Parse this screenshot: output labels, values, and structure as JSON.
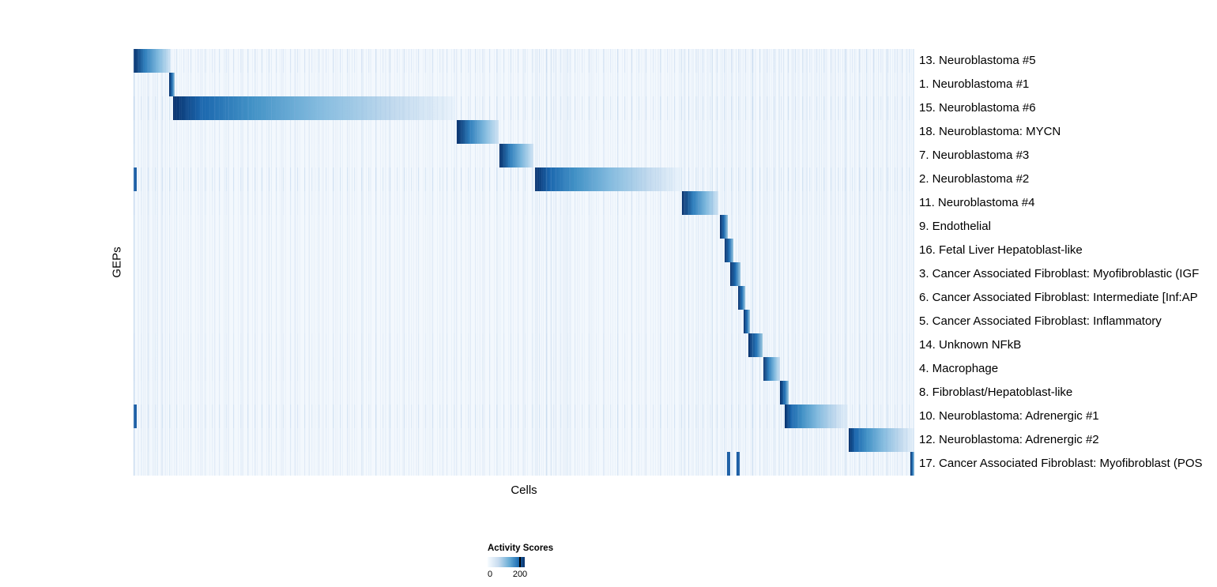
{
  "legend": {
    "title": "Activity Scores",
    "tick_min": "0",
    "tick_max": "200"
  },
  "chart_data": {
    "type": "heatmap",
    "title": "",
    "xlabel": "Cells",
    "ylabel": "GEPs",
    "legend_position": "bottom",
    "grid": false,
    "colorbar": {
      "label": "Activity Scores",
      "ticks": [
        0,
        200
      ],
      "color_low": "#f7fbff",
      "color_high": "#08306b"
    },
    "rows": [
      {
        "label": "13. Neuroblastoma #5",
        "block_start": 0.0,
        "block_end": 0.048,
        "streaks": 0.45
      },
      {
        "label": "1. Neuroblastoma #1",
        "block_start": 0.046,
        "block_end": 0.053,
        "streaks": 0.2
      },
      {
        "label": "15. Neuroblastoma #6",
        "block_start": 0.051,
        "block_end": 0.412,
        "streaks": 0.5
      },
      {
        "label": "18. Neuroblastoma: MYCN",
        "block_start": 0.414,
        "block_end": 0.468,
        "streaks": 0.25
      },
      {
        "label": "7. Neuroblastoma #3",
        "block_start": 0.469,
        "block_end": 0.512,
        "streaks": 0.2
      },
      {
        "label": "2. Neuroblastoma #2",
        "block_start": 0.514,
        "block_end": 0.7,
        "streaks": 0.55,
        "marks": [
          {
            "start": 0.0,
            "end": 0.004
          }
        ]
      },
      {
        "label": "11. Neuroblastoma #4",
        "block_start": 0.702,
        "block_end": 0.749,
        "streaks": 0.3
      },
      {
        "label": "9. Endothelial",
        "block_start": 0.751,
        "block_end": 0.761,
        "streaks": 0.2
      },
      {
        "label": "16. Fetal Liver Hepatoblast-like",
        "block_start": 0.757,
        "block_end": 0.768,
        "streaks": 0.2
      },
      {
        "label": "3. Cancer Associated Fibroblast: Myofibroblastic (IGF",
        "block_start": 0.764,
        "block_end": 0.777,
        "streaks": 0.2
      },
      {
        "label": "6. Cancer Associated Fibroblast: Intermediate [Inf:AP",
        "block_start": 0.774,
        "block_end": 0.783,
        "streaks": 0.2
      },
      {
        "label": "5. Cancer Associated Fibroblast: Inflammatory",
        "block_start": 0.781,
        "block_end": 0.789,
        "streaks": 0.2
      },
      {
        "label": "14. Unknown NFkB",
        "block_start": 0.787,
        "block_end": 0.806,
        "streaks": 0.3
      },
      {
        "label": "4. Macrophage",
        "block_start": 0.807,
        "block_end": 0.828,
        "streaks": 0.35
      },
      {
        "label": "8. Fibroblast/Hepatoblast-like",
        "block_start": 0.828,
        "block_end": 0.839,
        "streaks": 0.25
      },
      {
        "label": "10. Neuroblastoma: Adrenergic #1",
        "block_start": 0.834,
        "block_end": 0.915,
        "streaks": 0.5,
        "marks": [
          {
            "start": 0.0,
            "end": 0.004
          }
        ]
      },
      {
        "label": "12. Neuroblastoma: Adrenergic #2",
        "block_start": 0.916,
        "block_end": 1.0,
        "streaks": 0.3
      },
      {
        "label": "17. Cancer Associated Fibroblast: Myofibroblast (POS",
        "block_start": 0.995,
        "block_end": 1.0,
        "streaks": 0.25,
        "marks": [
          {
            "start": 0.76,
            "end": 0.764
          },
          {
            "start": 0.772,
            "end": 0.776
          }
        ]
      }
    ],
    "texture_bands": [
      {
        "start": 0.0,
        "end": 0.05,
        "opacity": 0.4
      },
      {
        "start": 0.514,
        "end": 0.565,
        "opacity": 0.5
      },
      {
        "start": 0.7,
        "end": 1.0,
        "opacity": 0.45
      }
    ]
  }
}
